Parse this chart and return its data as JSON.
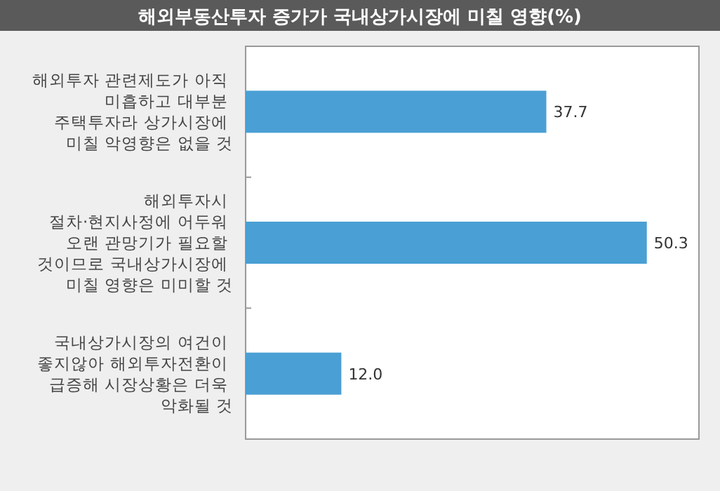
{
  "chart_data": {
    "type": "bar",
    "orientation": "horizontal",
    "title": "해외부동산투자 증가가 국내상가시장에 미칠 영향(%)",
    "categories": [
      "해외투자 관련제도가 아직 미흡하고 대부분 주택투자라 상가시장에 미칠 악영향은 없을 것",
      "해외투자시 절차·현지사정에 어두워 오랜 관망기가 필요할 것이므로 국내상가시장에 미칠 영향은 미미할 것",
      "국내상가시장의 여건이 좋지않아 해외투자전환이 급증해 시장상황은 더욱 악화될 것"
    ],
    "values": [
      37.7,
      50.3,
      12.0
    ],
    "color": "#4a9fd4",
    "value_labels": [
      "37.7",
      "50.3",
      "12.0"
    ]
  }
}
